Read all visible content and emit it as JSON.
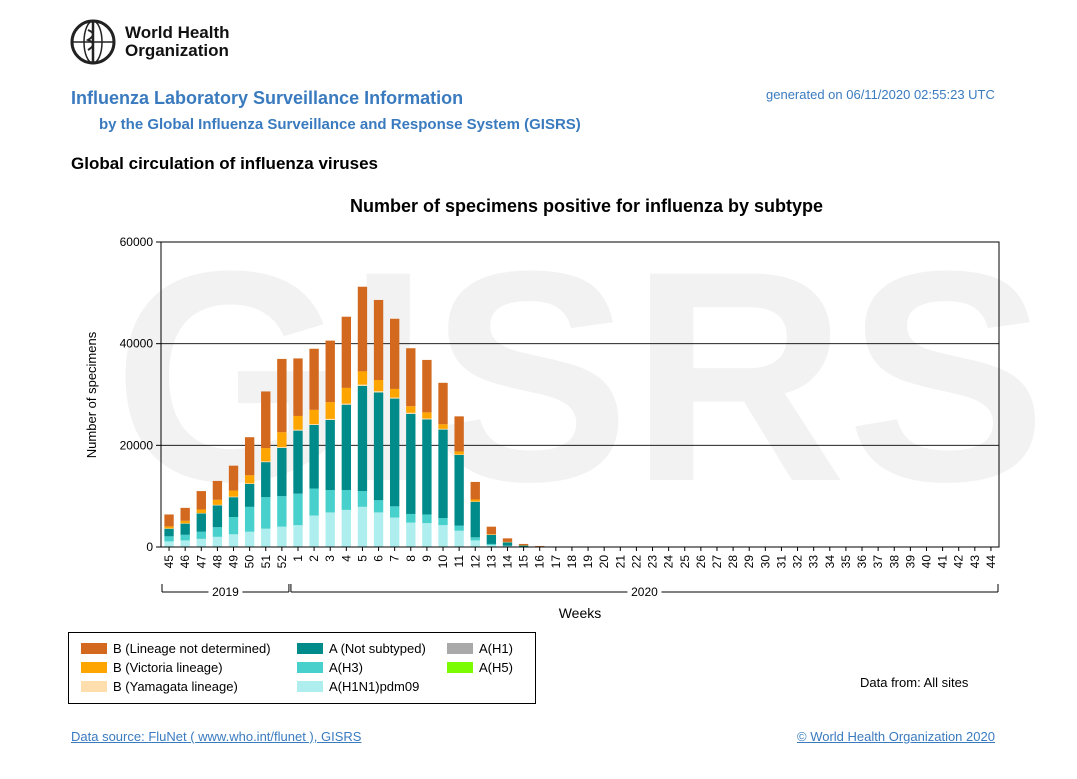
{
  "header": {
    "logo_line1": "World Health",
    "logo_line2": "Organization",
    "title": "Influenza Laboratory Surveillance Information",
    "subtitle": "by the Global Influenza Surveillance and Response System (GISRS)",
    "generated": "generated on 06/11/2020 02:55:23 UTC",
    "section": "Global circulation of influenza viruses"
  },
  "watermark": "GISRS",
  "colors": {
    "B_lineage_not_determined": "#d2691e",
    "B_victoria": "#ffa500",
    "B_yamagata": "#ffdead",
    "A_not_subtyped": "#008b8b",
    "A_H3": "#48d1cc",
    "A_H1N1pdm09": "#aeeeee",
    "A_H1": "#a9a9a9",
    "A_H5": "#7cfc00"
  },
  "chart_data": {
    "type": "bar",
    "stacked": true,
    "title": "Number of specimens positive for influenza by subtype",
    "xlabel": "Weeks",
    "ylabel": "Number of specimens",
    "ylim": [
      0,
      60000
    ],
    "yticks": [
      "0",
      "20000",
      "40000",
      "60000"
    ],
    "grid": true,
    "year_groups": [
      {
        "label": "2019",
        "from": 0,
        "to": 7
      },
      {
        "label": "2020",
        "from": 8,
        "to": 51
      }
    ],
    "categories": [
      "45",
      "46",
      "47",
      "48",
      "49",
      "50",
      "51",
      "52",
      "1",
      "2",
      "3",
      "4",
      "5",
      "6",
      "7",
      "8",
      "9",
      "10",
      "11",
      "12",
      "13",
      "14",
      "15",
      "16",
      "17",
      "18",
      "19",
      "20",
      "21",
      "22",
      "23",
      "24",
      "25",
      "26",
      "27",
      "28",
      "29",
      "30",
      "31",
      "32",
      "33",
      "34",
      "35",
      "36",
      "37",
      "38",
      "39",
      "40",
      "41",
      "42",
      "43",
      "44"
    ],
    "series": [
      {
        "name": "A(H1N1)pdm09",
        "color": "#aeeeee",
        "values": [
          1100,
          1300,
          1600,
          2000,
          2500,
          3000,
          3600,
          4000,
          4300,
          6200,
          6800,
          7300,
          7900,
          6800,
          5800,
          4800,
          4700,
          4300,
          3200,
          1300,
          400,
          150,
          50,
          20,
          10,
          10,
          5,
          5,
          5,
          5,
          5,
          5,
          5,
          5,
          5,
          5,
          5,
          5,
          5,
          5,
          5,
          5,
          5,
          5,
          5,
          5,
          5,
          5,
          5,
          5,
          5,
          5
        ]
      },
      {
        "name": "A(H1)",
        "color": "#a9a9a9",
        "values": [
          0,
          0,
          0,
          0,
          0,
          0,
          0,
          0,
          0,
          0,
          0,
          0,
          0,
          0,
          0,
          0,
          0,
          0,
          0,
          0,
          0,
          0,
          0,
          0,
          0,
          0,
          0,
          0,
          0,
          0,
          0,
          0,
          0,
          0,
          0,
          0,
          0,
          0,
          0,
          0,
          0,
          0,
          0,
          0,
          0,
          0,
          0,
          0,
          0,
          0,
          0,
          0
        ]
      },
      {
        "name": "A(H3)",
        "color": "#48d1cc",
        "values": [
          1000,
          1100,
          1400,
          1900,
          3400,
          4900,
          6200,
          6000,
          6200,
          5300,
          4400,
          3900,
          3100,
          2400,
          2200,
          1700,
          1700,
          1400,
          1000,
          600,
          200,
          100,
          30,
          10,
          5,
          5,
          5,
          5,
          5,
          5,
          5,
          5,
          5,
          5,
          5,
          5,
          5,
          5,
          5,
          5,
          5,
          5,
          5,
          5,
          5,
          5,
          5,
          5,
          5,
          5,
          5,
          5
        ]
      },
      {
        "name": "A(H5)",
        "color": "#7cfc00",
        "values": [
          0,
          0,
          0,
          0,
          0,
          0,
          0,
          0,
          0,
          0,
          0,
          0,
          0,
          0,
          0,
          0,
          0,
          0,
          0,
          0,
          0,
          0,
          0,
          0,
          0,
          0,
          0,
          0,
          0,
          0,
          0,
          0,
          0,
          0,
          0,
          0,
          0,
          0,
          0,
          0,
          0,
          0,
          0,
          0,
          0,
          0,
          0,
          0,
          0,
          0,
          0,
          0
        ]
      },
      {
        "name": "A (Not subtyped)",
        "color": "#008b8b",
        "values": [
          1500,
          2200,
          3600,
          4300,
          3900,
          4500,
          6900,
          9500,
          12400,
          12500,
          13800,
          16800,
          20700,
          21200,
          21200,
          19700,
          18700,
          17400,
          13900,
          7000,
          1800,
          700,
          250,
          80,
          30,
          20,
          15,
          10,
          10,
          10,
          10,
          10,
          10,
          10,
          10,
          10,
          10,
          10,
          10,
          10,
          10,
          10,
          10,
          10,
          10,
          10,
          10,
          10,
          10,
          10,
          10,
          10
        ]
      },
      {
        "name": "B (Yamagata lineage)",
        "color": "#ffdead",
        "values": [
          50,
          60,
          80,
          90,
          100,
          120,
          150,
          180,
          180,
          180,
          200,
          200,
          250,
          250,
          200,
          200,
          180,
          150,
          100,
          50,
          20,
          10,
          5,
          5,
          5,
          5,
          5,
          5,
          5,
          5,
          5,
          5,
          5,
          5,
          5,
          5,
          5,
          5,
          5,
          5,
          5,
          5,
          5,
          5,
          5,
          5,
          5,
          5,
          5,
          5,
          5,
          5
        ]
      },
      {
        "name": "B (Victoria lineage)",
        "color": "#ffa500",
        "values": [
          400,
          500,
          700,
          1000,
          1200,
          1600,
          2600,
          2900,
          2700,
          2800,
          3300,
          3100,
          2600,
          2200,
          1700,
          1300,
          1200,
          900,
          600,
          400,
          100,
          50,
          20,
          10,
          5,
          5,
          5,
          5,
          5,
          5,
          5,
          5,
          5,
          5,
          5,
          5,
          5,
          5,
          5,
          5,
          5,
          5,
          5,
          5,
          5,
          5,
          5,
          5,
          5,
          5,
          5,
          5
        ]
      },
      {
        "name": "B (Lineage not determined)",
        "color": "#d2691e",
        "values": [
          2350,
          2540,
          3620,
          3710,
          4900,
          7480,
          11150,
          14420,
          11320,
          12020,
          12100,
          14000,
          16650,
          15750,
          13800,
          11400,
          10320,
          8150,
          6900,
          3450,
          1480,
          690,
          245,
          75,
          40,
          30,
          25,
          20,
          20,
          20,
          20,
          20,
          20,
          20,
          20,
          20,
          20,
          20,
          20,
          20,
          20,
          20,
          20,
          20,
          20,
          20,
          20,
          20,
          20,
          20,
          20,
          20
        ]
      }
    ]
  },
  "legend": {
    "items": [
      {
        "label": "B (Lineage not determined)",
        "color": "#d2691e"
      },
      {
        "label": "B (Victoria lineage)",
        "color": "#ffa500"
      },
      {
        "label": "B (Yamagata lineage)",
        "color": "#ffdead"
      },
      {
        "label": "A (Not subtyped)",
        "color": "#008b8b"
      },
      {
        "label": "A(H3)",
        "color": "#48d1cc"
      },
      {
        "label": "A(H1N1)pdm09",
        "color": "#aeeeee"
      },
      {
        "label": "A(H1)",
        "color": "#a9a9a9"
      },
      {
        "label": "A(H5)",
        "color": "#7cfc00"
      }
    ]
  },
  "footer": {
    "data_from": "Data from: All sites",
    "source": "Data source: FluNet ( www.who.int/flunet ), GISRS",
    "copyright": "© World Health Organization 2020"
  }
}
